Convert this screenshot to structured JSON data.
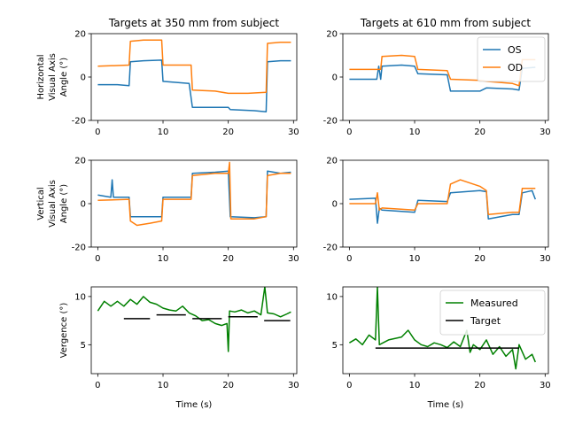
{
  "figure": {
    "bg": "#ffffff"
  },
  "colors": {
    "os": "#1f77b4",
    "od": "#ff7f0e",
    "measured": "#008000",
    "target": "#000000"
  },
  "chart_data": [
    {
      "id": "h350",
      "type": "line",
      "title": "Targets at 350 mm from subject",
      "ylabel": [
        "Horizontal",
        "Visual Axis",
        "Angle (°)"
      ],
      "xlabel": "",
      "xlim": [
        -1,
        30.5
      ],
      "ylim": [
        -20,
        20
      ],
      "xticks": [
        0,
        10,
        20,
        30
      ],
      "yticks": [
        -20,
        0,
        20
      ],
      "series": [
        {
          "key": "os",
          "name": "OS",
          "points": [
            [
              0,
              -3.5
            ],
            [
              3,
              -3.5
            ],
            [
              4.8,
              -4
            ],
            [
              5,
              7
            ],
            [
              7,
              7.5
            ],
            [
              9.8,
              7.8
            ],
            [
              10,
              -2
            ],
            [
              14,
              -3
            ],
            [
              14.5,
              -14
            ],
            [
              18,
              -14
            ],
            [
              20,
              -14
            ],
            [
              20.3,
              -15
            ],
            [
              24,
              -15.5
            ],
            [
              25.8,
              -16
            ],
            [
              26,
              7
            ],
            [
              28,
              7.5
            ],
            [
              29.6,
              7.5
            ]
          ]
        },
        {
          "key": "od",
          "name": "OD",
          "points": [
            [
              0,
              5
            ],
            [
              4.8,
              5.5
            ],
            [
              5,
              16.5
            ],
            [
              7,
              17
            ],
            [
              9.8,
              17
            ],
            [
              10,
              5.5
            ],
            [
              14.3,
              5.5
            ],
            [
              14.5,
              -6
            ],
            [
              18,
              -6.5
            ],
            [
              20,
              -7.5
            ],
            [
              23,
              -7.5
            ],
            [
              25.8,
              -7
            ],
            [
              26,
              15.5
            ],
            [
              28,
              16
            ],
            [
              29.6,
              16
            ]
          ]
        }
      ],
      "legend": null
    },
    {
      "id": "h610",
      "type": "line",
      "title": "Targets at 610 mm from subject",
      "ylabel": [],
      "xlabel": "",
      "xlim": [
        -1,
        30.5
      ],
      "ylim": [
        -20,
        20
      ],
      "xticks": [
        0,
        10,
        20,
        30
      ],
      "yticks": [
        -20,
        0,
        20
      ],
      "series": [
        {
          "key": "os",
          "name": "OS",
          "points": [
            [
              0,
              -1
            ],
            [
              4.2,
              -1
            ],
            [
              4.5,
              5
            ],
            [
              4.8,
              -1
            ],
            [
              5,
              5
            ],
            [
              8,
              5.5
            ],
            [
              10,
              5
            ],
            [
              10.5,
              1.5
            ],
            [
              15,
              1
            ],
            [
              15.5,
              -6.5
            ],
            [
              20,
              -6.5
            ],
            [
              21,
              -5
            ],
            [
              25,
              -5.5
            ],
            [
              26,
              -6
            ],
            [
              26.5,
              4
            ],
            [
              28.5,
              4.5
            ]
          ]
        },
        {
          "key": "od",
          "name": "OD",
          "points": [
            [
              0,
              3.5
            ],
            [
              4.8,
              3.5
            ],
            [
              5,
              9.5
            ],
            [
              8,
              10
            ],
            [
              10,
              9.5
            ],
            [
              10.5,
              3.5
            ],
            [
              15,
              3
            ],
            [
              15.5,
              -1
            ],
            [
              20,
              -1.5
            ],
            [
              21,
              -2
            ],
            [
              25,
              -3
            ],
            [
              26,
              -4
            ],
            [
              26.5,
              8
            ],
            [
              28.5,
              8
            ]
          ]
        }
      ],
      "legend": {
        "position": "upper right",
        "entries": [
          "OS",
          "OD"
        ]
      }
    },
    {
      "id": "v350",
      "type": "line",
      "title": "",
      "ylabel": [
        "Vertical",
        "Visual Axis",
        "Angle (°)"
      ],
      "xlabel": "",
      "xlim": [
        -1,
        30.5
      ],
      "ylim": [
        -20,
        20
      ],
      "xticks": [
        0,
        10,
        20,
        30
      ],
      "yticks": [
        -20,
        0,
        20
      ],
      "series": [
        {
          "key": "os",
          "name": "OS",
          "points": [
            [
              0,
              4
            ],
            [
              2,
              3
            ],
            [
              2.2,
              11
            ],
            [
              2.4,
              3
            ],
            [
              4.8,
              3
            ],
            [
              5,
              -6
            ],
            [
              8,
              -6
            ],
            [
              9.8,
              -6
            ],
            [
              10,
              3
            ],
            [
              14.3,
              3
            ],
            [
              14.5,
              14
            ],
            [
              18,
              14.5
            ],
            [
              20,
              15
            ],
            [
              20.3,
              -6
            ],
            [
              24,
              -6.5
            ],
            [
              25.8,
              -6
            ],
            [
              26,
              15
            ],
            [
              28,
              14
            ],
            [
              29.6,
              14.5
            ]
          ]
        },
        {
          "key": "od",
          "name": "OD",
          "points": [
            [
              0,
              1.5
            ],
            [
              4.8,
              2
            ],
            [
              5,
              -8
            ],
            [
              6,
              -10
            ],
            [
              8,
              -9
            ],
            [
              9.8,
              -8
            ],
            [
              10,
              2
            ],
            [
              14.3,
              2
            ],
            [
              14.5,
              13
            ],
            [
              18,
              14
            ],
            [
              20,
              14
            ],
            [
              20.2,
              19
            ],
            [
              20.4,
              -7
            ],
            [
              24,
              -7
            ],
            [
              25.8,
              -6
            ],
            [
              26,
              13
            ],
            [
              28,
              14
            ],
            [
              29.6,
              14
            ]
          ]
        }
      ],
      "legend": null
    },
    {
      "id": "v610",
      "type": "line",
      "title": "",
      "ylabel": [],
      "xlabel": "",
      "xlim": [
        -1,
        30.5
      ],
      "ylim": [
        -20,
        20
      ],
      "xticks": [
        0,
        10,
        20,
        30
      ],
      "yticks": [
        -20,
        0,
        20
      ],
      "series": [
        {
          "key": "os",
          "name": "OS",
          "points": [
            [
              0,
              2
            ],
            [
              4,
              2.5
            ],
            [
              4.3,
              -9
            ],
            [
              4.6,
              -2
            ],
            [
              5,
              -3
            ],
            [
              10,
              -4
            ],
            [
              10.5,
              1.5
            ],
            [
              15,
              1
            ],
            [
              15.5,
              5
            ],
            [
              20,
              6
            ],
            [
              21,
              5.5
            ],
            [
              21.3,
              -7
            ],
            [
              25,
              -5
            ],
            [
              26,
              -5
            ],
            [
              26.5,
              5
            ],
            [
              28,
              6
            ],
            [
              28.5,
              2
            ]
          ]
        },
        {
          "key": "od",
          "name": "OD",
          "points": [
            [
              0,
              0
            ],
            [
              4,
              0
            ],
            [
              4.3,
              5
            ],
            [
              4.6,
              -3
            ],
            [
              5,
              -2
            ],
            [
              10,
              -3
            ],
            [
              10.5,
              0
            ],
            [
              15,
              0
            ],
            [
              15.5,
              9
            ],
            [
              17,
              11
            ],
            [
              20,
              8
            ],
            [
              21,
              6
            ],
            [
              21.3,
              -5
            ],
            [
              25,
              -4
            ],
            [
              26,
              -4
            ],
            [
              26.5,
              7
            ],
            [
              28,
              7
            ],
            [
              28.5,
              7
            ]
          ]
        }
      ],
      "legend": null
    },
    {
      "id": "verg350",
      "type": "line",
      "title": "",
      "ylabel": [
        "Vergence (°)"
      ],
      "xlabel": "Time (s)",
      "xlim": [
        -1,
        30.5
      ],
      "ylim": [
        2,
        11
      ],
      "xticks": [
        0,
        10,
        20,
        30
      ],
      "yticks": [
        5,
        10
      ],
      "series": [
        {
          "key": "measured",
          "name": "Measured",
          "points": [
            [
              0,
              8.5
            ],
            [
              1,
              9.5
            ],
            [
              2,
              9
            ],
            [
              3,
              9.5
            ],
            [
              4,
              9
            ],
            [
              5,
              9.7
            ],
            [
              6,
              9.2
            ],
            [
              7,
              10
            ],
            [
              8,
              9.4
            ],
            [
              9,
              9.2
            ],
            [
              10,
              8.8
            ],
            [
              11,
              8.6
            ],
            [
              12,
              8.5
            ],
            [
              13,
              9
            ],
            [
              14,
              8.3
            ],
            [
              15,
              8
            ],
            [
              16,
              7.5
            ],
            [
              17,
              7.6
            ],
            [
              18,
              7.2
            ],
            [
              19,
              7
            ],
            [
              19.8,
              7.2
            ],
            [
              20,
              4.3
            ],
            [
              20.2,
              8.5
            ],
            [
              21,
              8.4
            ],
            [
              22,
              8.6
            ],
            [
              23,
              8.3
            ],
            [
              24,
              8.5
            ],
            [
              25,
              8.1
            ],
            [
              25.6,
              11
            ],
            [
              26,
              8.3
            ],
            [
              27,
              8.2
            ],
            [
              28,
              7.9
            ],
            [
              29,
              8.2
            ],
            [
              29.6,
              8.4
            ]
          ]
        },
        {
          "key": "target",
          "name": "Target",
          "segments": [
            [
              [
                4,
                7.7
              ],
              [
                8,
                7.7
              ]
            ],
            [
              [
                9,
                8.1
              ],
              [
                13.5,
                8.1
              ]
            ],
            [
              [
                14.5,
                7.7
              ],
              [
                19,
                7.7
              ]
            ],
            [
              [
                20,
                7.9
              ],
              [
                24.5,
                7.9
              ]
            ],
            [
              [
                25.5,
                7.5
              ],
              [
                29.5,
                7.5
              ]
            ]
          ]
        }
      ],
      "legend": null
    },
    {
      "id": "verg610",
      "type": "line",
      "title": "",
      "ylabel": [],
      "xlabel": "Time (s)",
      "xlim": [
        -1,
        30.5
      ],
      "ylim": [
        2,
        11
      ],
      "xticks": [
        0,
        10,
        20,
        30
      ],
      "yticks": [
        5,
        10
      ],
      "series": [
        {
          "key": "measured",
          "name": "Measured",
          "points": [
            [
              0,
              5.2
            ],
            [
              1,
              5.6
            ],
            [
              2,
              5
            ],
            [
              3,
              6
            ],
            [
              4,
              5.5
            ],
            [
              4.3,
              11
            ],
            [
              4.6,
              5
            ],
            [
              6,
              5.5
            ],
            [
              8,
              5.8
            ],
            [
              9,
              6.5
            ],
            [
              10,
              5.5
            ],
            [
              11,
              5
            ],
            [
              12,
              4.8
            ],
            [
              13,
              5.2
            ],
            [
              14,
              5
            ],
            [
              15,
              4.7
            ],
            [
              16,
              5.3
            ],
            [
              17,
              4.8
            ],
            [
              18,
              6.5
            ],
            [
              18.5,
              4.2
            ],
            [
              19,
              5
            ],
            [
              20,
              4.5
            ],
            [
              21,
              5.5
            ],
            [
              22,
              4
            ],
            [
              23,
              4.8
            ],
            [
              24,
              3.8
            ],
            [
              25,
              4.5
            ],
            [
              25.5,
              2.5
            ],
            [
              26,
              5
            ],
            [
              27,
              3.5
            ],
            [
              28,
              4
            ],
            [
              28.5,
              3.2
            ]
          ]
        },
        {
          "key": "target",
          "name": "Target",
          "segments": [
            [
              [
                4,
                4.65
              ],
              [
                26,
                4.65
              ]
            ]
          ]
        }
      ],
      "legend": {
        "position": "upper right",
        "entries": [
          "Measured",
          "Target"
        ]
      }
    }
  ]
}
